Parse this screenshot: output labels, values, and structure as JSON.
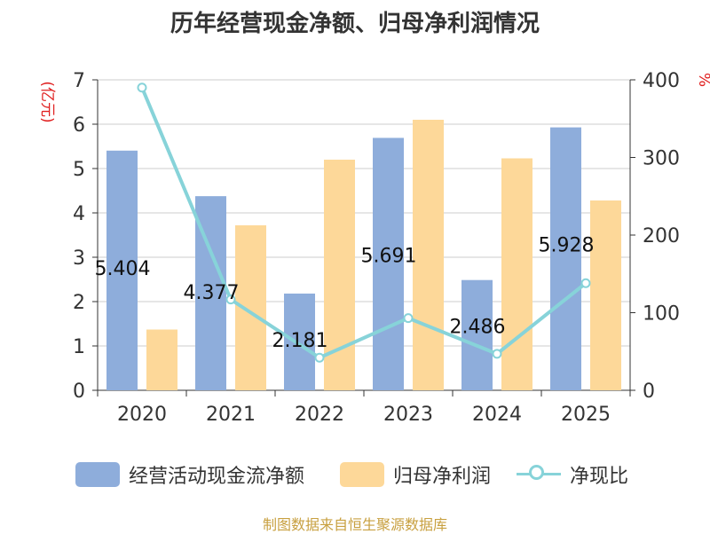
{
  "chart_data": {
    "type": "bar",
    "title": "历年经营现金净额、归母净利润情况",
    "categories": [
      "2020",
      "2021",
      "2022",
      "2023",
      "2024",
      "2025"
    ],
    "series": [
      {
        "name": "经营活动现金流净额",
        "type": "bar",
        "axis": "left",
        "values": [
          5.404,
          4.377,
          2.181,
          5.691,
          2.486,
          5.928
        ],
        "color": "#8eaddb"
      },
      {
        "name": "归母净利润",
        "type": "bar",
        "axis": "left",
        "values": [
          1.37,
          3.72,
          5.2,
          6.1,
          5.23,
          4.28
        ],
        "color": "#fdd899"
      },
      {
        "name": "净现比",
        "type": "line",
        "axis": "right",
        "values": [
          390,
          117,
          42,
          93,
          47,
          138
        ],
        "color": "#87d3d9"
      }
    ],
    "data_labels": [
      "5.404",
      "4.377",
      "2.181",
      "5.691",
      "2.486",
      "5.928"
    ],
    "y_left": {
      "label": "(亿元)",
      "ylim": [
        0,
        7
      ],
      "ticks": [
        "0",
        "1",
        "2",
        "3",
        "4",
        "5",
        "6",
        "7"
      ]
    },
    "y_right": {
      "label": "%",
      "ylim": [
        0,
        400
      ],
      "ticks": [
        "0",
        "100",
        "200",
        "300",
        "400"
      ]
    },
    "legend_position": "bottom",
    "grid": true,
    "label_color": "#e02020",
    "source": "制图数据来自恒生聚源数据库",
    "source_color": "#c8a040"
  }
}
